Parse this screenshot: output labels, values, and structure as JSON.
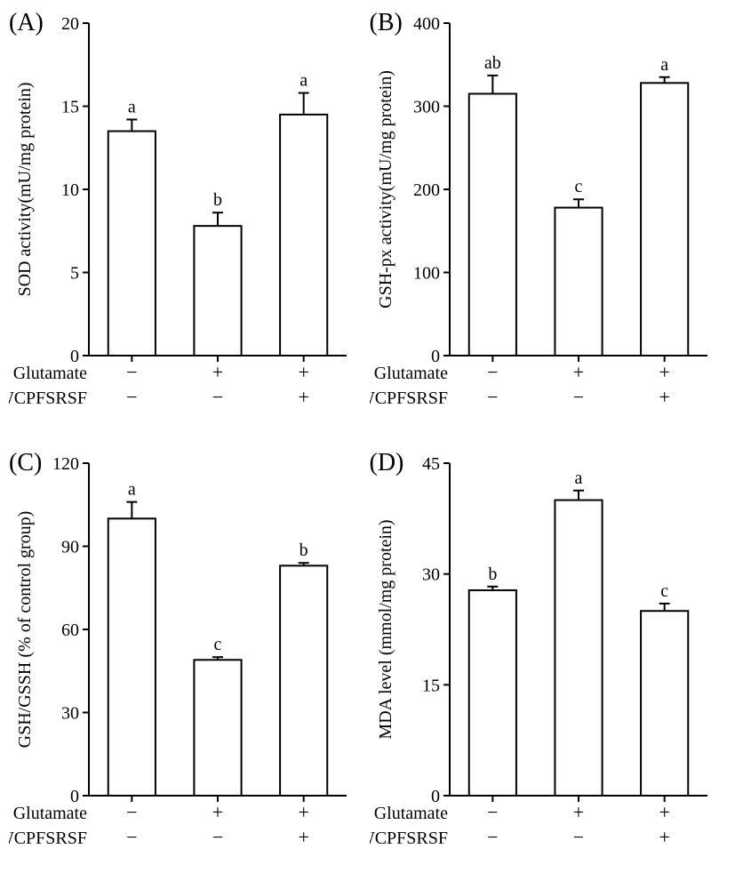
{
  "figure": {
    "background_color": "#ffffff",
    "bar_fill": "#ffffff",
    "bar_stroke": "#000000",
    "bar_stroke_width": 2,
    "axis_stroke": "#000000",
    "axis_stroke_width": 2,
    "tick_fontsize": 20,
    "label_fontsize": 20,
    "panel_label_fontsize": 28,
    "sig_fontsize": 20,
    "treatment_fontsize": 20,
    "bar_width_ratio": 0.55,
    "error_cap_width": 12
  },
  "panels": [
    {
      "id": "A",
      "label": "(A)",
      "ylabel": "SOD activity(mU/mg protein)",
      "ylim": [
        0,
        20
      ],
      "ytick_step": 5,
      "values": [
        13.5,
        7.8,
        14.5
      ],
      "errors": [
        0.7,
        0.8,
        1.3
      ],
      "sig_letters": [
        "a",
        "b",
        "a"
      ],
      "treatments": {
        "Glutamate": [
          "−",
          "+",
          "+"
        ],
        "WCPFSRSF": [
          "−",
          "−",
          "+"
        ]
      }
    },
    {
      "id": "B",
      "label": "(B)",
      "ylabel": "GSH-px activity(mU/mg protein)",
      "ylim": [
        0,
        400
      ],
      "ytick_step": 100,
      "values": [
        315,
        178,
        328
      ],
      "errors": [
        22,
        10,
        7
      ],
      "sig_letters": [
        "ab",
        "c",
        "a"
      ],
      "treatments": {
        "Glutamate": [
          "−",
          "+",
          "+"
        ],
        "WCPFSRSF": [
          "−",
          "−",
          "+"
        ]
      }
    },
    {
      "id": "C",
      "label": "(C)",
      "ylabel": "GSH/GSSH (% of control group)",
      "ylim": [
        0,
        120
      ],
      "ytick_step": 30,
      "values": [
        100,
        49,
        83
      ],
      "errors": [
        6,
        1,
        1
      ],
      "sig_letters": [
        "a",
        "c",
        "b"
      ],
      "treatments": {
        "Glutamate": [
          "−",
          "+",
          "+"
        ],
        "WCPFSRSF": [
          "−",
          "−",
          "+"
        ]
      }
    },
    {
      "id": "D",
      "label": "(D)",
      "ylabel": "MDA level (mmol/mg protein)",
      "ylim": [
        0,
        45
      ],
      "ytick_step": 15,
      "values": [
        27.8,
        40,
        25
      ],
      "errors": [
        0.5,
        1.3,
        1.0
      ],
      "sig_letters": [
        "b",
        "a",
        "c"
      ],
      "treatments": {
        "Glutamate": [
          "−",
          "+",
          "+"
        ],
        "WCPFSRSF": [
          "−",
          "−",
          "+"
        ]
      }
    }
  ]
}
